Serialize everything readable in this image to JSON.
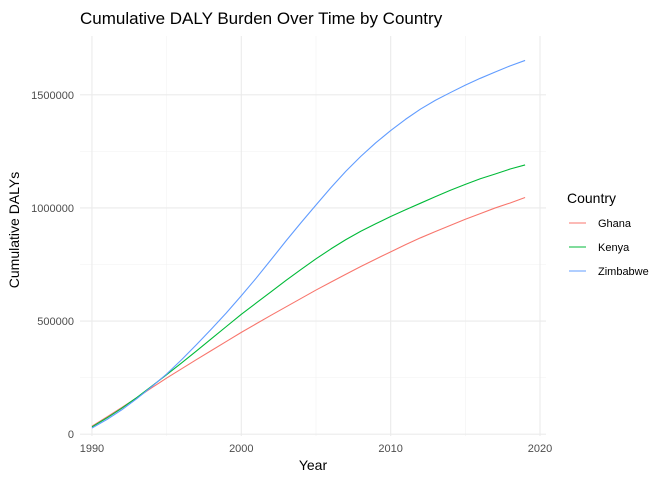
{
  "chart_data": {
    "type": "line",
    "title": "Cumulative DALY Burden Over Time by Country",
    "xlabel": "Year",
    "ylabel": "Cumulative DALYs",
    "xlim": [
      1989.2,
      2020.4
    ],
    "ylim": [
      -8000,
      1760000
    ],
    "x_major_ticks": [
      1990,
      2000,
      2010,
      2020
    ],
    "x_minor_ticks": [
      1995,
      2005,
      2015
    ],
    "y_major_ticks": [
      0,
      500000,
      1000000,
      1500000
    ],
    "y_minor_ticks": [
      250000,
      750000,
      1250000
    ],
    "y_tick_labels": [
      "0",
      "500000",
      "1000000",
      "1500000"
    ],
    "x_tick_labels": [
      "1990",
      "2000",
      "2010",
      "2020"
    ],
    "grid": true,
    "legend": {
      "title": "Country",
      "placement": "right"
    },
    "x": [
      1990,
      1991,
      1992,
      1993,
      1994,
      1995,
      1996,
      1997,
      1998,
      1999,
      2000,
      2001,
      2002,
      2003,
      2004,
      2005,
      2006,
      2007,
      2008,
      2009,
      2010,
      2011,
      2012,
      2013,
      2014,
      2015,
      2016,
      2017,
      2018,
      2019
    ],
    "series": [
      {
        "name": "Ghana",
        "color": "#F8766D",
        "values": [
          35000,
          76000,
          118000,
          161000,
          205000,
          248000,
          289000,
          330000,
          370000,
          410000,
          450000,
          488000,
          526000,
          563000,
          600000,
          637000,
          672000,
          707000,
          741000,
          774000,
          806000,
          838000,
          868000,
          896000,
          923000,
          950000,
          975000,
          1000000,
          1022000,
          1046000
        ]
      },
      {
        "name": "Kenya",
        "color": "#00BA38",
        "values": [
          32000,
          72000,
          115000,
          162000,
          212000,
          263000,
          315000,
          368000,
          422000,
          476000,
          530000,
          580000,
          630000,
          680000,
          728000,
          775000,
          819000,
          860000,
          897000,
          930000,
          962000,
          992000,
          1021000,
          1050000,
          1078000,
          1104000,
          1129000,
          1150000,
          1172000,
          1190000
        ]
      },
      {
        "name": "Zimbabwe",
        "color": "#619CFF",
        "values": [
          27000,
          65000,
          108000,
          157000,
          210000,
          266000,
          329000,
          396000,
          465000,
          536000,
          612000,
          690000,
          772000,
          855000,
          935000,
          1013000,
          1090000,
          1162000,
          1228000,
          1288000,
          1342000,
          1392000,
          1437000,
          1476000,
          1510000,
          1543000,
          1573000,
          1601000,
          1628000,
          1652000
        ]
      }
    ]
  }
}
